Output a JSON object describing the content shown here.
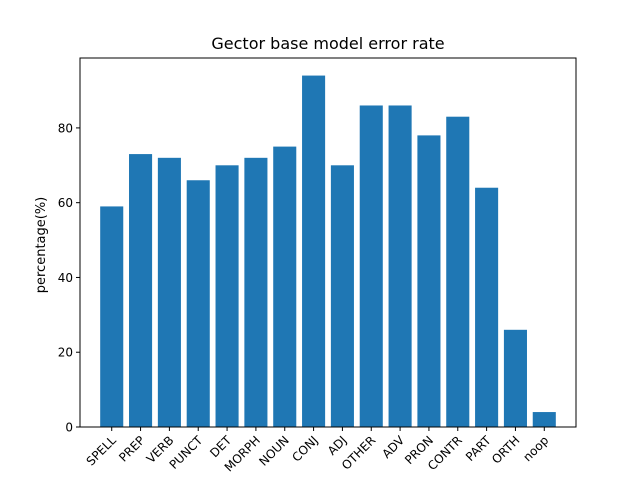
{
  "chart_data": {
    "type": "bar",
    "title": "Gector base model error rate",
    "xlabel": "",
    "ylabel": "percentage(%)",
    "categories": [
      "SPELL",
      "PREP",
      "VERB",
      "PUNCT",
      "DET",
      "MORPH",
      "NOUN",
      "CONJ",
      "ADJ",
      "OTHER",
      "ADV",
      "PRON",
      "CONTR",
      "PART",
      "ORTH",
      "noop"
    ],
    "values": [
      59,
      73,
      72,
      66,
      70,
      72,
      75,
      94,
      70,
      86,
      86,
      78,
      83,
      64,
      26,
      4
    ],
    "ylim": [
      0,
      98.7
    ],
    "yticks": [
      0,
      20,
      40,
      60,
      80
    ],
    "bar_color": "#1f77b4",
    "grid": false,
    "legend": null
  }
}
